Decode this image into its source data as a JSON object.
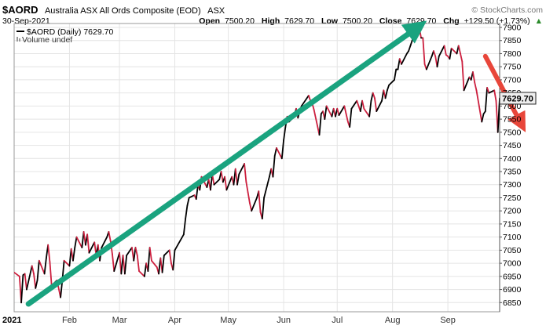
{
  "header": {
    "ticker": "$AORD",
    "name": "Australia ASX All Ords Composite (EOD)",
    "exchange": "ASX",
    "date": "30-Sep-2021",
    "open_label": "Open",
    "open_value": "7500.20",
    "high_label": "High",
    "high_value": "7629.70",
    "low_label": "Low",
    "low_value": "7500.20",
    "close_label": "Close",
    "close_value": "7629.70",
    "chg_label": "Chg",
    "chg_value": "+129.50 (+1.73%)",
    "chg_arrow": "▲"
  },
  "legend": {
    "series_label": "$AORD (Daily) 7629.70",
    "volume_label": "Volume undef"
  },
  "watermark": "© StockCharts.com",
  "last_price_label": "7629.70",
  "colors": {
    "up": "#000000",
    "down": "#cc1f3e",
    "trend_up": "#1aa37f",
    "trend_down": "#e8463a",
    "grid": "#e4e4e4",
    "last_box": "#eeeeee"
  },
  "chart_data": {
    "type": "line",
    "title": "$AORD Australia ASX All Ords Composite (EOD) ASX",
    "y_axis_side": "right",
    "ylim": [
      6815,
      7915
    ],
    "y_ticks": [
      6850,
      6900,
      6950,
      7000,
      7050,
      7100,
      7150,
      7200,
      7250,
      7300,
      7350,
      7400,
      7450,
      7500,
      7550,
      7600,
      7650,
      7700,
      7750,
      7800,
      7850,
      7900
    ],
    "y_tick_labels": [
      "6850",
      "6900",
      "6950",
      "7000",
      "7050",
      "7100",
      "7150",
      "7200",
      "7250",
      "7300",
      "7350",
      "7400",
      "7450",
      "7500",
      "7550",
      "7600",
      "7650",
      "7700",
      "7750",
      "7800",
      "7850",
      "7900"
    ],
    "x_range": [
      "2021-01-01",
      "2021-09-30"
    ],
    "x_ticks": [
      {
        "date": "2021-01-01",
        "label": "2021",
        "bold": true
      },
      {
        "date": "2021-02-01",
        "label": "Feb"
      },
      {
        "date": "2021-03-01",
        "label": "Mar"
      },
      {
        "date": "2021-04-01",
        "label": "Apr"
      },
      {
        "date": "2021-05-01",
        "label": "May"
      },
      {
        "date": "2021-06-01",
        "label": "Jun"
      },
      {
        "date": "2021-07-01",
        "label": "Jul"
      },
      {
        "date": "2021-08-01",
        "label": "Aug"
      },
      {
        "date": "2021-09-01",
        "label": "Sep"
      }
    ],
    "grid": true,
    "series": [
      {
        "name": "$AORD (Daily)",
        "points": [
          [
            "2021-01-01",
            6965
          ],
          [
            "2021-01-04",
            6950
          ],
          [
            "2021-01-05",
            6850
          ],
          [
            "2021-01-06",
            6955
          ],
          [
            "2021-01-07",
            6960
          ],
          [
            "2021-01-08",
            6900
          ],
          [
            "2021-01-11",
            6990
          ],
          [
            "2021-01-12",
            6960
          ],
          [
            "2021-01-13",
            6905
          ],
          [
            "2021-01-14",
            6935
          ],
          [
            "2021-01-15",
            7010
          ],
          [
            "2021-01-18",
            6960
          ],
          [
            "2021-01-19",
            7020
          ],
          [
            "2021-01-20",
            7070
          ],
          [
            "2021-01-21",
            7005
          ],
          [
            "2021-01-22",
            6915
          ],
          [
            "2021-01-25",
            6935
          ],
          [
            "2021-01-27",
            6870
          ],
          [
            "2021-01-28",
            6935
          ],
          [
            "2021-01-29",
            7010
          ],
          [
            "2021-02-01",
            6990
          ],
          [
            "2021-02-02",
            7055
          ],
          [
            "2021-02-03",
            7010
          ],
          [
            "2021-02-04",
            7060
          ],
          [
            "2021-02-05",
            7100
          ],
          [
            "2021-02-08",
            7060
          ],
          [
            "2021-02-09",
            7120
          ],
          [
            "2021-02-10",
            7070
          ],
          [
            "2021-02-11",
            7110
          ],
          [
            "2021-02-12",
            7040
          ],
          [
            "2021-02-15",
            7080
          ],
          [
            "2021-02-16",
            7030
          ],
          [
            "2021-02-17",
            7070
          ],
          [
            "2021-02-18",
            7010
          ],
          [
            "2021-02-19",
            7060
          ],
          [
            "2021-02-22",
            7100
          ],
          [
            "2021-02-23",
            7120
          ],
          [
            "2021-02-24",
            7085
          ],
          [
            "2021-02-25",
            7035
          ],
          [
            "2021-02-26",
            6970
          ],
          [
            "2021-03-01",
            7040
          ],
          [
            "2021-03-02",
            6960
          ],
          [
            "2021-03-03",
            7030
          ],
          [
            "2021-03-04",
            6960
          ],
          [
            "2021-03-05",
            7030
          ],
          [
            "2021-03-08",
            7060
          ],
          [
            "2021-03-09",
            7010
          ],
          [
            "2021-03-10",
            7060
          ],
          [
            "2021-03-11",
            7030
          ],
          [
            "2021-03-12",
            6970
          ],
          [
            "2021-03-15",
            6950
          ],
          [
            "2021-03-16",
            7000
          ],
          [
            "2021-03-17",
            6970
          ],
          [
            "2021-03-18",
            7060
          ],
          [
            "2021-03-19",
            7010
          ],
          [
            "2021-03-22",
            6985
          ],
          [
            "2021-03-23",
            6960
          ],
          [
            "2021-03-24",
            7020
          ],
          [
            "2021-03-25",
            6965
          ],
          [
            "2021-03-26",
            7030
          ],
          [
            "2021-03-29",
            7050
          ],
          [
            "2021-03-30",
            7000
          ],
          [
            "2021-03-31",
            6975
          ],
          [
            "2021-04-01",
            7050
          ],
          [
            "2021-04-06",
            7110
          ],
          [
            "2021-04-07",
            7170
          ],
          [
            "2021-04-08",
            7220
          ],
          [
            "2021-04-09",
            7250
          ],
          [
            "2021-04-12",
            7260
          ],
          [
            "2021-04-13",
            7245
          ],
          [
            "2021-04-14",
            7300
          ],
          [
            "2021-04-15",
            7280
          ],
          [
            "2021-04-16",
            7330
          ],
          [
            "2021-04-19",
            7290
          ],
          [
            "2021-04-20",
            7320
          ],
          [
            "2021-04-21",
            7280
          ],
          [
            "2021-04-22",
            7340
          ],
          [
            "2021-04-23",
            7300
          ],
          [
            "2021-04-26",
            7320
          ],
          [
            "2021-04-27",
            7350
          ],
          [
            "2021-04-28",
            7310
          ],
          [
            "2021-04-29",
            7330
          ],
          [
            "2021-04-30",
            7280
          ],
          [
            "2021-05-03",
            7330
          ],
          [
            "2021-05-04",
            7300
          ],
          [
            "2021-05-05",
            7360
          ],
          [
            "2021-05-06",
            7300
          ],
          [
            "2021-05-07",
            7340
          ],
          [
            "2021-05-10",
            7380
          ],
          [
            "2021-05-11",
            7310
          ],
          [
            "2021-05-12",
            7270
          ],
          [
            "2021-05-13",
            7230
          ],
          [
            "2021-05-14",
            7200
          ],
          [
            "2021-05-17",
            7250
          ],
          [
            "2021-05-18",
            7275
          ],
          [
            "2021-05-19",
            7195
          ],
          [
            "2021-05-20",
            7170
          ],
          [
            "2021-05-21",
            7250
          ],
          [
            "2021-05-24",
            7330
          ],
          [
            "2021-05-25",
            7360
          ],
          [
            "2021-05-26",
            7330
          ],
          [
            "2021-05-27",
            7410
          ],
          [
            "2021-05-28",
            7440
          ],
          [
            "2021-05-31",
            7400
          ],
          [
            "2021-06-01",
            7470
          ],
          [
            "2021-06-02",
            7520
          ],
          [
            "2021-06-03",
            7560
          ],
          [
            "2021-06-04",
            7540
          ],
          [
            "2021-06-07",
            7560
          ],
          [
            "2021-06-08",
            7590
          ],
          [
            "2021-06-09",
            7555
          ],
          [
            "2021-06-10",
            7580
          ],
          [
            "2021-06-11",
            7600
          ],
          [
            "2021-06-15",
            7640
          ],
          [
            "2021-06-16",
            7620
          ],
          [
            "2021-06-17",
            7610
          ],
          [
            "2021-06-18",
            7585
          ],
          [
            "2021-06-21",
            7490
          ],
          [
            "2021-06-22",
            7570
          ],
          [
            "2021-06-23",
            7580
          ],
          [
            "2021-06-24",
            7550
          ],
          [
            "2021-06-25",
            7600
          ],
          [
            "2021-06-28",
            7560
          ],
          [
            "2021-06-29",
            7590
          ],
          [
            "2021-06-30",
            7560
          ],
          [
            "2021-07-01",
            7590
          ],
          [
            "2021-07-02",
            7565
          ],
          [
            "2021-07-05",
            7600
          ],
          [
            "2021-07-06",
            7570
          ],
          [
            "2021-07-07",
            7540
          ],
          [
            "2021-07-08",
            7520
          ],
          [
            "2021-07-09",
            7590
          ],
          [
            "2021-07-12",
            7620
          ],
          [
            "2021-07-13",
            7600
          ],
          [
            "2021-07-14",
            7580
          ],
          [
            "2021-07-15",
            7620
          ],
          [
            "2021-07-16",
            7590
          ],
          [
            "2021-07-19",
            7560
          ],
          [
            "2021-07-20",
            7620
          ],
          [
            "2021-07-21",
            7650
          ],
          [
            "2021-07-22",
            7630
          ],
          [
            "2021-07-23",
            7580
          ],
          [
            "2021-07-26",
            7620
          ],
          [
            "2021-07-27",
            7660
          ],
          [
            "2021-07-28",
            7630
          ],
          [
            "2021-07-29",
            7660
          ],
          [
            "2021-07-30",
            7680
          ],
          [
            "2021-08-02",
            7700
          ],
          [
            "2021-08-03",
            7740
          ],
          [
            "2021-08-04",
            7740
          ],
          [
            "2021-08-05",
            7780
          ],
          [
            "2021-08-06",
            7760
          ],
          [
            "2021-08-09",
            7800
          ],
          [
            "2021-08-10",
            7810
          ],
          [
            "2021-08-11",
            7830
          ],
          [
            "2021-08-12",
            7850
          ],
          [
            "2021-08-13",
            7880
          ],
          [
            "2021-08-16",
            7900
          ],
          [
            "2021-08-17",
            7860
          ],
          [
            "2021-08-18",
            7860
          ],
          [
            "2021-08-19",
            7760
          ],
          [
            "2021-08-20",
            7740
          ],
          [
            "2021-08-23",
            7790
          ],
          [
            "2021-08-24",
            7810
          ],
          [
            "2021-08-25",
            7790
          ],
          [
            "2021-08-26",
            7750
          ],
          [
            "2021-08-27",
            7790
          ],
          [
            "2021-08-30",
            7830
          ],
          [
            "2021-08-31",
            7795
          ],
          [
            "2021-09-01",
            7790
          ],
          [
            "2021-09-02",
            7780
          ],
          [
            "2021-09-03",
            7820
          ],
          [
            "2021-09-06",
            7800
          ],
          [
            "2021-09-07",
            7830
          ],
          [
            "2021-09-08",
            7800
          ],
          [
            "2021-09-09",
            7770
          ],
          [
            "2021-09-10",
            7660
          ],
          [
            "2021-09-13",
            7710
          ],
          [
            "2021-09-14",
            7700
          ],
          [
            "2021-09-15",
            7730
          ],
          [
            "2021-09-16",
            7690
          ],
          [
            "2021-09-17",
            7660
          ],
          [
            "2021-09-20",
            7540
          ],
          [
            "2021-09-21",
            7570
          ],
          [
            "2021-09-22",
            7580
          ],
          [
            "2021-09-23",
            7670
          ],
          [
            "2021-09-24",
            7650
          ],
          [
            "2021-09-27",
            7660
          ],
          [
            "2021-09-28",
            7620
          ],
          [
            "2021-09-29",
            7500
          ],
          [
            "2021-09-30",
            7629.7
          ]
        ]
      }
    ],
    "annotations": [
      {
        "type": "arrow",
        "color": "up",
        "from": [
          "2021-01-09",
          6845
        ],
        "to": [
          "2021-08-17",
          7910
        ]
      },
      {
        "type": "arrow",
        "color": "down",
        "from": [
          "2021-09-22",
          7790
        ],
        "to": [
          "2021-10-13",
          7520
        ]
      }
    ]
  }
}
